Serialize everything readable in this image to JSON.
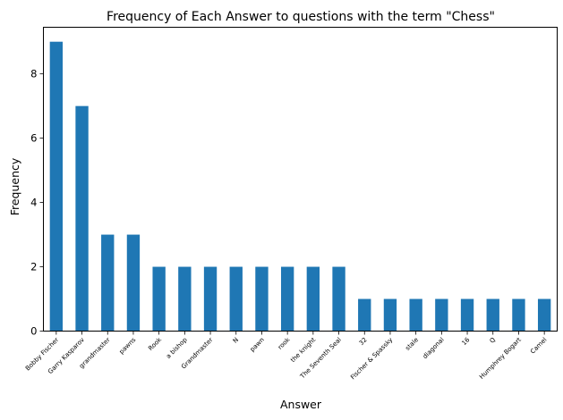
{
  "chart_data": {
    "type": "bar",
    "title": "Frequency of Each Answer to questions with the term \"Chess\"",
    "xlabel": "Answer",
    "ylabel": "Frequency",
    "ylim": [
      0,
      9.45
    ],
    "yticks": [
      0,
      2,
      4,
      6,
      8
    ],
    "grid": false,
    "bar_color": "#1f77b4",
    "categories": [
      "Bobby Fischer",
      "Garry Kasparov",
      "grandmaster",
      "pawns",
      "Rook",
      "a bishop",
      "Grandmaster",
      "N",
      "pawn",
      "rook",
      "the knight",
      "The Seventh Seal",
      "32",
      "Fischer & Spassky",
      "stale",
      "diagonal",
      "16",
      "Q",
      "Humphrey Bogart",
      "Camel"
    ],
    "values": [
      9,
      7,
      3,
      3,
      2,
      2,
      2,
      2,
      2,
      2,
      2,
      2,
      1,
      1,
      1,
      1,
      1,
      1,
      1,
      1
    ]
  }
}
